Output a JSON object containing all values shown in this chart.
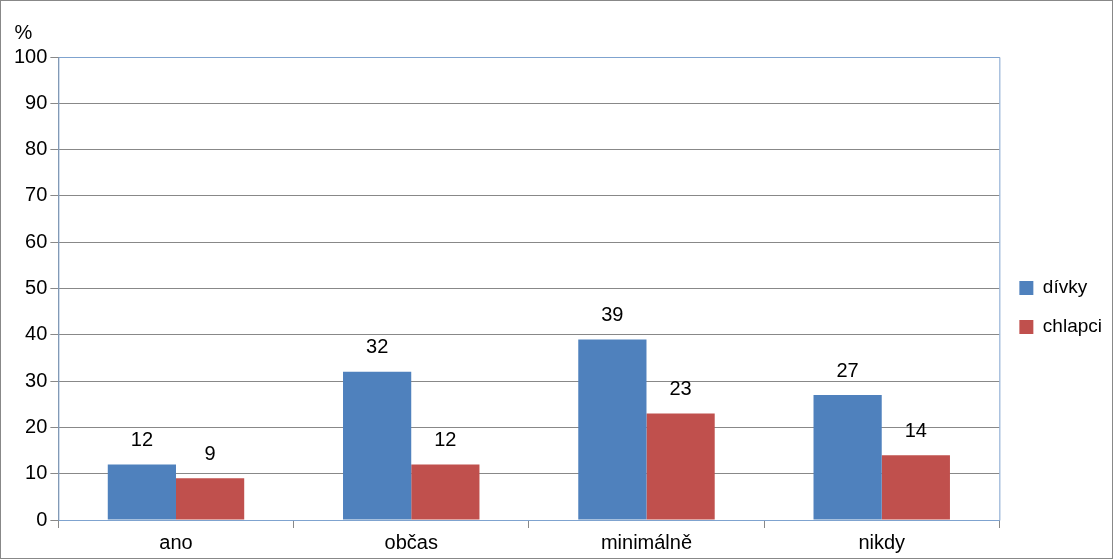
{
  "chart_data": {
    "type": "bar",
    "ylabel": "%",
    "categories": [
      "ano",
      "občas",
      "minimálně",
      "nikdy"
    ],
    "series": [
      {
        "name": "dívky",
        "color": "#4f81bd",
        "values": [
          12,
          32,
          39,
          27
        ]
      },
      {
        "name": "chlapci",
        "color": "#c0504d",
        "values": [
          9,
          12,
          23,
          14
        ]
      }
    ],
    "ylim": [
      0,
      100
    ],
    "yticks": [
      0,
      10,
      20,
      30,
      40,
      50,
      60,
      70,
      80,
      90,
      100
    ],
    "grid": "y",
    "legend": "right",
    "data_labels": true
  }
}
